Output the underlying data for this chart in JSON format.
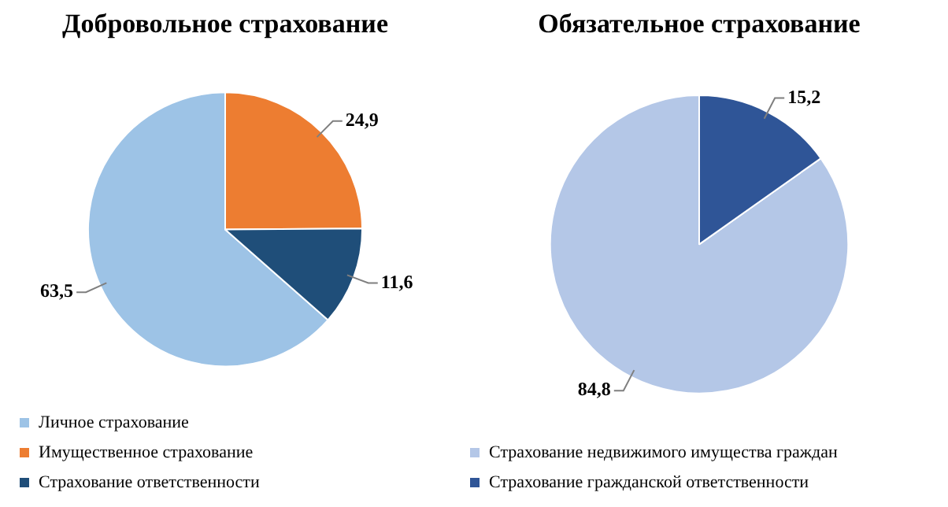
{
  "chart_data": [
    {
      "type": "pie",
      "title": "Добровольное страхование",
      "categories": [
        "Личное страхование",
        "Имущественное страхование",
        "Страхование ответственности"
      ],
      "values": [
        63.5,
        24.9,
        11.6
      ],
      "colors": [
        "#9dc3e6",
        "#ed7d31",
        "#1f4e79"
      ],
      "value_labels": [
        "63,5",
        "24,9",
        "11,6"
      ],
      "legend": "bottom"
    },
    {
      "type": "pie",
      "title": "Обязательное страхование",
      "categories": [
        "Страхование недвижимого имущества граждан",
        "Страхование гражданской ответственности"
      ],
      "values": [
        84.8,
        15.2
      ],
      "colors": [
        "#b4c7e7",
        "#2f5597"
      ],
      "value_labels": [
        "84,8",
        "15,2"
      ],
      "legend": "bottom"
    }
  ]
}
